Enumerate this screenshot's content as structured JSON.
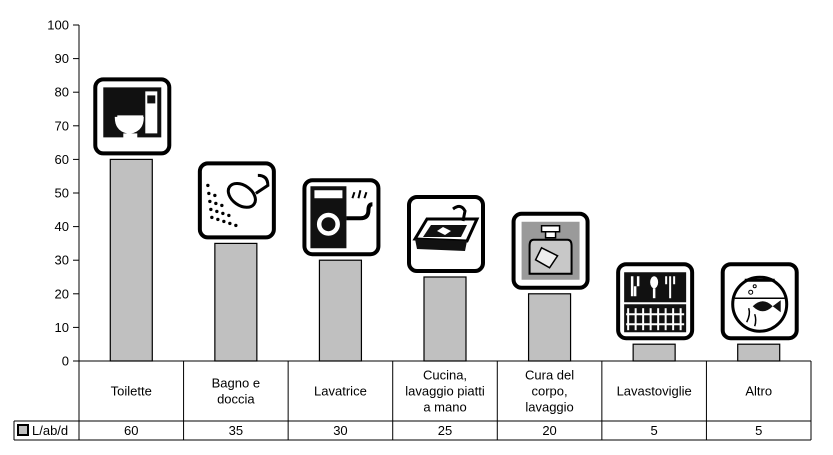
{
  "chart_data": {
    "type": "bar",
    "title": "",
    "xlabel": "",
    "ylabel": "",
    "ylim": [
      0,
      100
    ],
    "yticks": [
      0,
      10,
      20,
      30,
      40,
      50,
      60,
      70,
      80,
      90,
      100
    ],
    "grid": false,
    "legend": "bottom-left",
    "categories": [
      [
        "Toilette"
      ],
      [
        "Bagno e",
        "doccia"
      ],
      [
        "Lavatrice"
      ],
      [
        "Cucina,",
        "lavaggio piatti",
        "a mano"
      ],
      [
        "Cura del",
        "corpo,",
        "lavaggio"
      ],
      [
        "Lavastoviglie"
      ],
      [
        "Altro"
      ]
    ],
    "series": [
      {
        "name": "L/ab/d",
        "values": [
          60,
          35,
          30,
          25,
          20,
          5,
          5
        ],
        "color": "#c0c0c0"
      }
    ],
    "icons": [
      "toilet-icon",
      "shower-icon",
      "washing-machine-icon",
      "kitchen-sink-icon",
      "soap-bottle-icon",
      "dishwasher-icon",
      "fishbowl-icon"
    ]
  }
}
